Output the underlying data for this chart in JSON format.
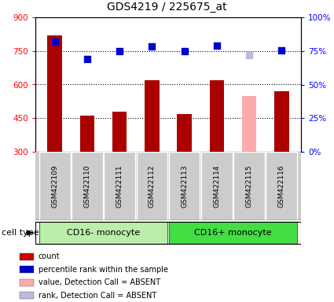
{
  "title": "GDS4219 / 225675_at",
  "samples": [
    "GSM422109",
    "GSM422110",
    "GSM422111",
    "GSM422112",
    "GSM422113",
    "GSM422114",
    "GSM422115",
    "GSM422116"
  ],
  "bar_values": [
    820,
    462,
    480,
    618,
    468,
    618,
    550,
    570
  ],
  "bar_colors": [
    "#aa0000",
    "#aa0000",
    "#aa0000",
    "#aa0000",
    "#aa0000",
    "#aa0000",
    "#ffaaaa",
    "#aa0000"
  ],
  "dot_values": [
    790,
    715,
    748,
    770,
    750,
    775,
    730,
    752
  ],
  "dot_colors": [
    "#0000cc",
    "#0000cc",
    "#0000cc",
    "#0000cc",
    "#0000cc",
    "#0000cc",
    "#bbbbdd",
    "#0000cc"
  ],
  "ylim_left": [
    300,
    900
  ],
  "ylim_right": [
    0,
    100
  ],
  "yticks_left": [
    300,
    450,
    600,
    750,
    900
  ],
  "yticks_right": [
    0,
    25,
    50,
    75,
    100
  ],
  "ytick_labels_right": [
    "0%",
    "25%",
    "50%",
    "75%",
    "100%"
  ],
  "grid_lines": [
    450,
    600,
    750
  ],
  "groups": [
    {
      "label": "CD16- monocyte",
      "start": 0,
      "end": 3,
      "color": "#bbeeaa"
    },
    {
      "label": "CD16+ monocyte",
      "start": 4,
      "end": 7,
      "color": "#44dd44"
    }
  ],
  "cell_type_label": "cell type",
  "legend_items": [
    {
      "color": "#cc0000",
      "label": "count"
    },
    {
      "color": "#0000cc",
      "label": "percentile rank within the sample"
    },
    {
      "color": "#ffaaaa",
      "label": "value, Detection Call = ABSENT"
    },
    {
      "color": "#bbbbdd",
      "label": "rank, Detection Call = ABSENT"
    }
  ],
  "sample_box_color": "#cccccc",
  "sample_box_edge": "#888888",
  "group_edge_color": "#228822",
  "plot_bg": "#ffffff",
  "absent_sample_idx": 6,
  "bar_width": 0.45,
  "dot_size": 28,
  "title_fontsize": 10,
  "tick_fontsize": 7.5,
  "sample_fontsize": 6.5,
  "group_fontsize": 8,
  "legend_fontsize": 7,
  "cell_type_fontsize": 8
}
